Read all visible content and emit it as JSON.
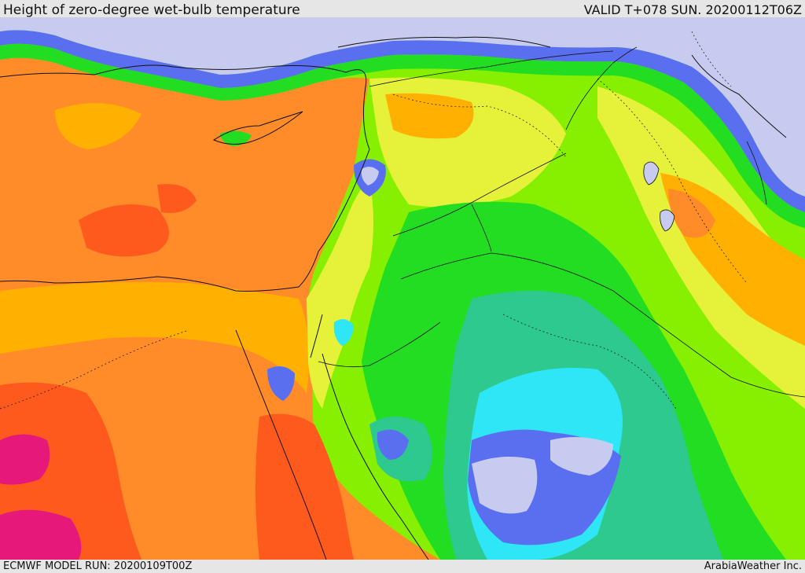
{
  "header": {
    "title": "Height of zero-degree wet-bulb temperature",
    "valid": "VALID T+078 SUN. 20200112T06Z"
  },
  "footer": {
    "model_run": "ECMWF MODEL RUN: 20200109T00Z",
    "credit": "ArabiaWeather Inc."
  },
  "colors": {
    "lavender": "#c8cbf0",
    "blue": "#5a6ef0",
    "cyan": "#2ee6f5",
    "teal": "#2dc98e",
    "green": "#22dd22",
    "lime": "#86f000",
    "yellow": "#e6f23a",
    "gold": "#ffb000",
    "orange": "#ff8c28",
    "red_orange": "#ff5a1e",
    "magenta": "#e6197a"
  }
}
